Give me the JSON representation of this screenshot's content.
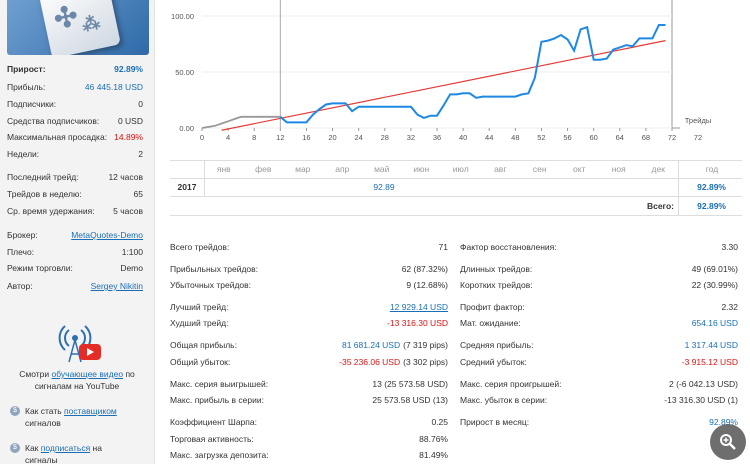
{
  "sidebar": {
    "stats": [
      {
        "label": "Прирост:",
        "value": "92.89%",
        "style": "blue bold",
        "labelBold": true
      },
      {
        "label": "Прибыль:",
        "value": "46 445.18 USD",
        "style": "blue"
      },
      {
        "label": "Подписчики:",
        "value": "0"
      },
      {
        "label": "Средства подписчиков:",
        "value": "0 USD"
      },
      {
        "label": "Максимальная просадка:",
        "value": "14.89%",
        "style": "red"
      },
      {
        "label": "Недели:",
        "value": "2"
      },
      {
        "label": "Последний трейд:",
        "value": "12 часов"
      },
      {
        "label": "Трейдов в неделю:",
        "value": "65"
      },
      {
        "label": "Ср. время удержания:",
        "value": "5 часов"
      },
      {
        "label": "Брокер:",
        "value": "MetaQuotes-Demo",
        "style": "link"
      },
      {
        "label": "Плечо:",
        "value": "1:100"
      },
      {
        "label": "Режим торговли:",
        "value": "Demo"
      },
      {
        "label": "Автор:",
        "value": "Sergey Nikitin",
        "style": "link"
      }
    ],
    "video_text_1": "Смотри ",
    "video_link": "обучающее видео",
    "video_text_2": " по сигналам на YouTube",
    "help1_text": "Как стать ",
    "help1_link": "поставщиком",
    "help1_rest": "сигналов",
    "help2_text": "Как ",
    "help2_link": "подписаться",
    "help2_mid": " на",
    "help2_rest": "сигналы"
  },
  "chart_data": {
    "type": "line",
    "xlabel": "Трейды",
    "xlim": [
      0,
      72
    ],
    "ylim": [
      0,
      100
    ],
    "x_ticks": [
      0,
      4,
      8,
      12,
      16,
      20,
      24,
      28,
      32,
      36,
      40,
      44,
      48,
      52,
      56,
      60,
      64,
      68,
      72
    ],
    "x_tick_extra": "72",
    "y_ticks": [
      "0.00",
      "50.00",
      "100.00"
    ],
    "series": [
      {
        "color_hex": "#1e88e5",
        "x": [
          0,
          2,
          3,
          4,
          5,
          6,
          8,
          9,
          10,
          11,
          12,
          13,
          14,
          15,
          16,
          17,
          18,
          19,
          20,
          21,
          22,
          23,
          24,
          25,
          26,
          27,
          28,
          29,
          30,
          31,
          32,
          33,
          34,
          35,
          36,
          37,
          38,
          39,
          40,
          41,
          42,
          43,
          44,
          45,
          46,
          47,
          48,
          49,
          50,
          51,
          52,
          53,
          54,
          55,
          56,
          57,
          58,
          59,
          60,
          61,
          62,
          63,
          64,
          65,
          66,
          67,
          68,
          69,
          70,
          71
        ],
        "y": [
          0,
          2,
          4,
          6,
          8,
          10,
          10,
          10,
          10,
          10,
          10,
          5,
          5,
          5,
          5,
          12,
          17,
          21,
          22,
          22,
          22,
          15,
          19,
          19,
          19,
          19,
          19,
          19,
          19,
          19,
          19,
          12,
          9,
          11,
          11,
          20,
          30,
          30,
          31,
          31,
          27,
          28,
          28,
          28,
          28,
          28,
          28,
          30,
          31,
          45,
          77,
          78,
          80,
          83,
          79,
          69,
          88,
          90,
          61,
          61,
          62,
          70,
          72,
          74,
          73,
          80,
          80,
          80,
          92,
          92
        ],
        "note": "gray segment for x<=12"
      },
      {
        "color_hex": "#e53935",
        "type": "trendline",
        "x": [
          3,
          71
        ],
        "y": [
          -2,
          78
        ]
      }
    ],
    "vertical_marker_x": 12
  },
  "monthly": {
    "months": [
      "янв",
      "фев",
      "мар",
      "апр",
      "май",
      "июн",
      "июл",
      "авг",
      "сен",
      "окт",
      "ноя",
      "дек"
    ],
    "year_header": "год",
    "year": "2017",
    "year_value": "92.89",
    "year_total": "92.89%",
    "total_label": "Всего:",
    "total_value": "92.89%"
  },
  "stats_left": [
    {
      "label": "Всего трейдов:",
      "value": "71"
    },
    {
      "label": "Прибыльных трейдов:",
      "value": "62 (87.32%)"
    },
    {
      "label": "Убыточных трейдов:",
      "value": "9 (12.68%)"
    },
    {
      "label": "Лучший трейд:",
      "value": "12 929.14 USD",
      "style": "link"
    },
    {
      "label": "Худший трейд:",
      "value": "-13 316.30 USD",
      "style": "red"
    },
    {
      "label": "Общая прибыль:",
      "value": "81 681.24 USD",
      "style": "blue",
      "extra": "(7 319 pips)"
    },
    {
      "label": "Общий убыток:",
      "value": "-35 236.06 USD",
      "style": "red",
      "extra": "(3 302 pips)"
    },
    {
      "label": "Макс. серия выигрышей:",
      "value": "13 (25 573.58 USD)"
    },
    {
      "label": "Макс. прибыль в серии:",
      "value": "25 573.58 USD (13)"
    },
    {
      "label": "Коэффициент Шарпа:",
      "value": "0.25"
    },
    {
      "label": "Торговая активность:",
      "value": "88.76%"
    },
    {
      "label": "Макс. загрузка депозита:",
      "value": "81.49%"
    }
  ],
  "stats_right": [
    {
      "label": "Фактор восстановления:",
      "value": "3.30"
    },
    {
      "label": "Длинных трейдов:",
      "value": "49 (69.01%)"
    },
    {
      "label": "Коротких трейдов:",
      "value": "22 (30.99%)"
    },
    {
      "label": "Профит фактор:",
      "value": "2.32"
    },
    {
      "label": "Мат. ожидание:",
      "value": "654.16 USD",
      "style": "blue"
    },
    {
      "label": "Средняя прибыль:",
      "value": "1 317.44 USD",
      "style": "blue"
    },
    {
      "label": "Средний убыток:",
      "value": "-3 915.12 USD",
      "style": "red"
    },
    {
      "label": "Макс. серия проигрышей:",
      "value": "2 (-6 042.13 USD)"
    },
    {
      "label": "Макс. убыток в серии:",
      "value": "-13 316.30 USD (1)"
    },
    {
      "label": "Прирост в месяц:",
      "value": "92.89%",
      "style": "blue"
    }
  ],
  "colors": {
    "blue": "#1a6eb8",
    "red": "#dd1111",
    "chart_blue": "#1e88e5",
    "trend_red": "#e53935"
  }
}
